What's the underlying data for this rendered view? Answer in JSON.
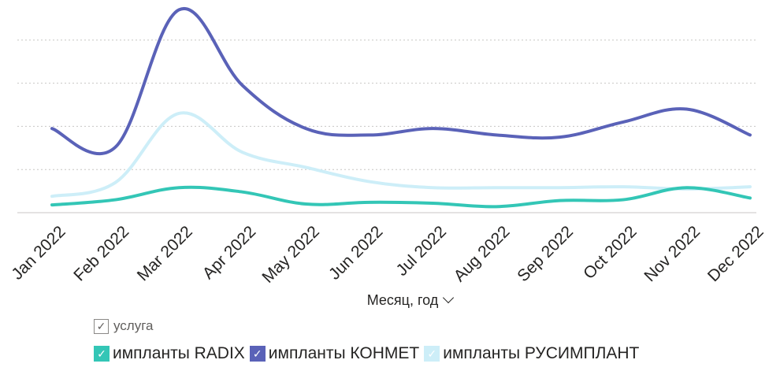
{
  "chart_data": {
    "type": "line",
    "categories": [
      "Jan 2022",
      "Feb 2022",
      "Mar 2022",
      "Apr 2022",
      "May 2022",
      "Jun 2022",
      "Jul 2022",
      "Aug 2022",
      "Sep 2022",
      "Oct 2022",
      "Nov 2022",
      "Dec 2022"
    ],
    "series": [
      {
        "name": "импланты RADIX",
        "color": "#33c6b6",
        "values": [
          18,
          30,
          58,
          48,
          20,
          24,
          22,
          14,
          28,
          30,
          58,
          34
        ]
      },
      {
        "name": "импланты КОНМЕТ",
        "color": "#5a62b8",
        "values": [
          195,
          152,
          470,
          295,
          195,
          180,
          195,
          180,
          175,
          210,
          240,
          180
        ]
      },
      {
        "name": "импланты РУСИМПЛАНТ",
        "color": "#cdeef8",
        "values": [
          38,
          70,
          230,
          140,
          105,
          72,
          58,
          58,
          58,
          60,
          55,
          60
        ]
      }
    ],
    "ylim": [
      0,
      480
    ],
    "yticks": [
      0,
      100,
      200,
      300,
      400
    ],
    "grid": true,
    "show_y_labels": false,
    "xlabel": "Месяц, год",
    "legend_title": "услуга",
    "legend_position": "bottom-left"
  }
}
